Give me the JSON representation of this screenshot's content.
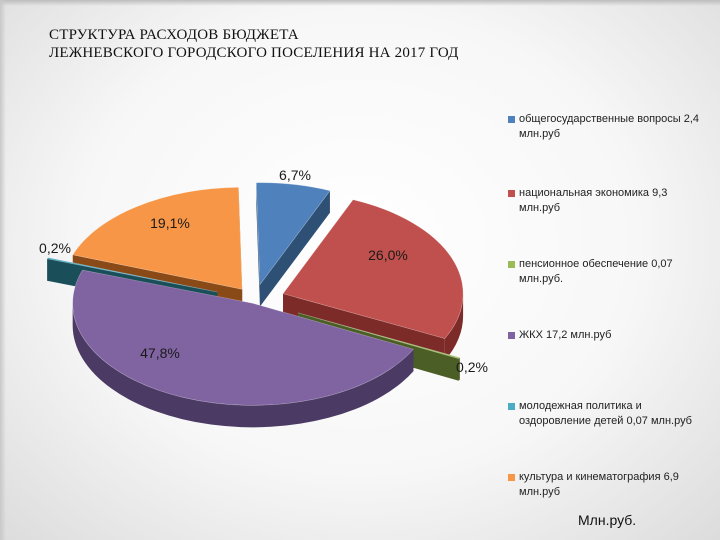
{
  "title_lines": [
    "СТРУКТУРА РАСХОДОВ БЮДЖЕТА",
    "ЛЕЖНЕВСКОГО ГОРОДСКОГО ПОСЕЛЕНИЯ  НА 2017 ГОД"
  ],
  "unit_note": "Млн.руб.",
  "chart_data": {
    "type": "pie",
    "style": "3d-exploded",
    "legend_position": "right",
    "slices": [
      {
        "label": "общегосударственные вопросы 2,4 млн.руб",
        "value": 2.4,
        "percent_label": "6,7%",
        "color": "#4f81bd",
        "side_color": "#2f5075"
      },
      {
        "label": "национальная экономика  9,3 млн.руб",
        "value": 9.3,
        "percent_label": "26,0%",
        "color": "#c0504d",
        "side_color": "#7d2b29"
      },
      {
        "label": "пенсионное обеспечение 0,07 млн.руб.",
        "value": 0.07,
        "percent_label": "0,2%",
        "color": "#9bbb59",
        "side_color": "#4b5e25"
      },
      {
        "label": "ЖКХ  17,2  млн.руб",
        "value": 17.2,
        "percent_label": "47,8%",
        "color": "#8064a2",
        "side_color": "#4b3a63"
      },
      {
        "label": "молодежная политика и оздоровление детей  0,07 млн.руб",
        "value": 0.07,
        "percent_label": "0,2%",
        "color": "#4bacc6",
        "side_color": "#1a4f5a"
      },
      {
        "label": "культура и кинематография 6,9 млн.руб",
        "value": 6.9,
        "percent_label": "19,1%",
        "color": "#f79646",
        "side_color": "#8a4a17"
      }
    ]
  }
}
